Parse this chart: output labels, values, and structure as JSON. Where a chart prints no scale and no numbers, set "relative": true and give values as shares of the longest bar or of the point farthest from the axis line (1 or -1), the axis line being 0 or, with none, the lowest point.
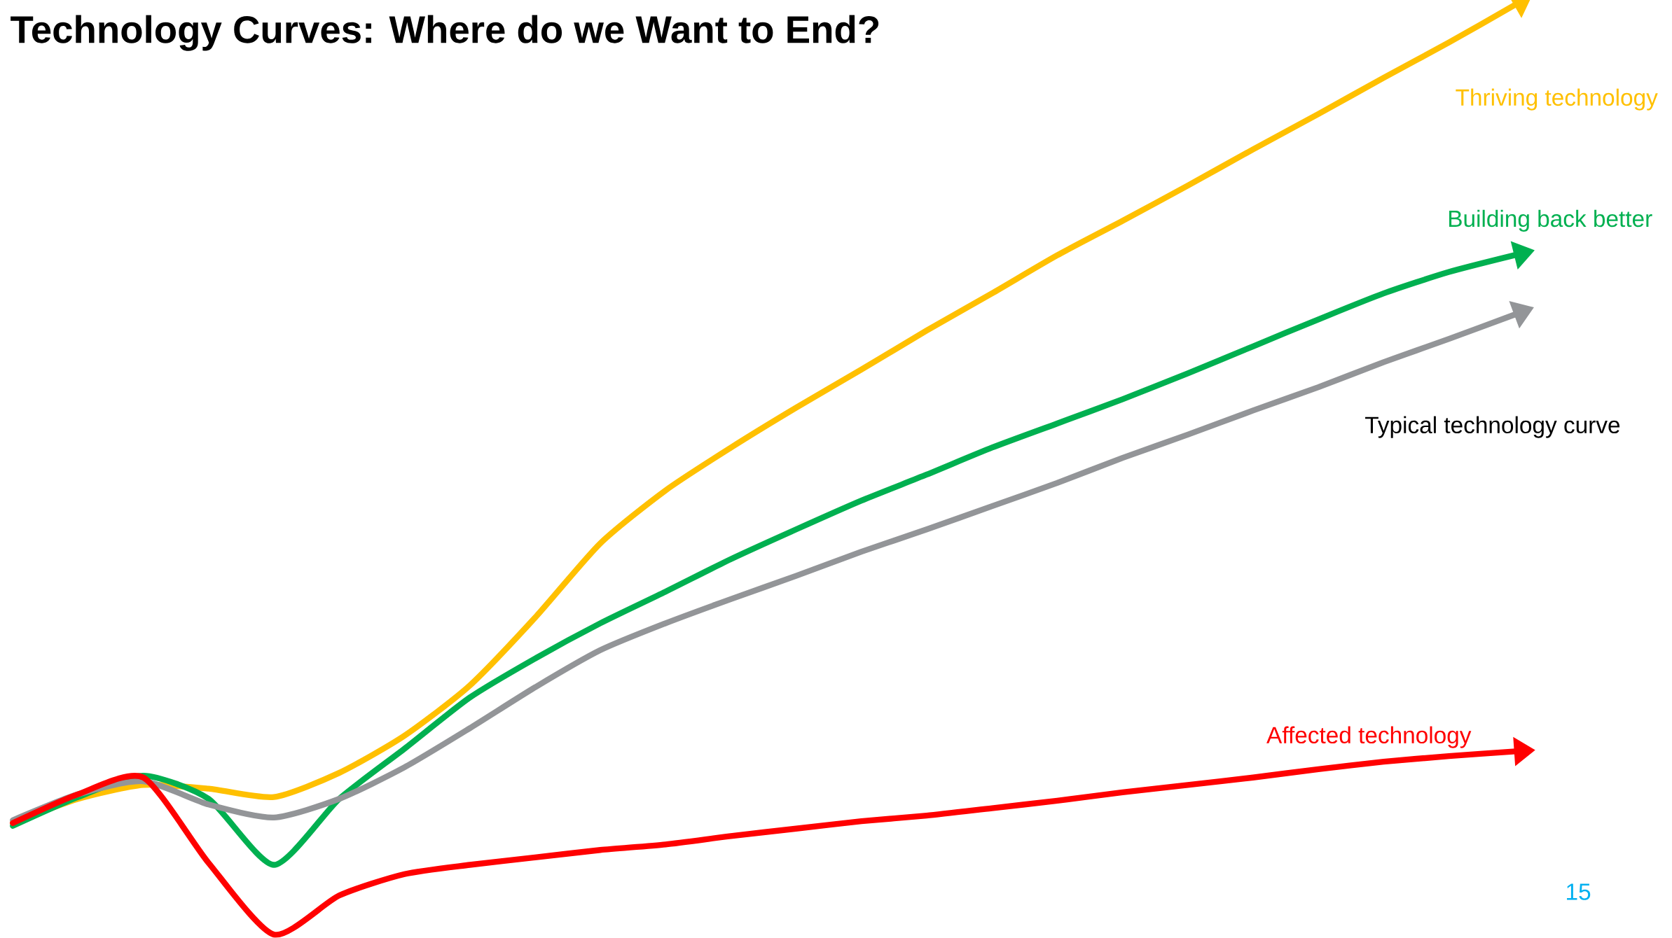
{
  "chart_data": {
    "type": "line",
    "title": "Technology Curves: Where do we Want to End?",
    "relative": true,
    "categories": [
      null,
      null,
      null,
      null,
      null,
      null,
      null,
      null,
      null,
      null,
      null,
      null,
      null,
      null,
      null,
      null,
      null,
      null,
      null,
      null,
      null,
      null,
      null,
      null
    ],
    "series": [
      {
        "name": "Thriving technology",
        "color": "#ffc000",
        "values": [
          0.12,
          0.146,
          0.161,
          0.157,
          0.148,
          0.174,
          0.214,
          0.268,
          0.341,
          0.421,
          0.478,
          0.524,
          0.567,
          0.608,
          0.65,
          0.69,
          0.731,
          0.768,
          0.806,
          0.845,
          0.883,
          0.922,
          0.96,
          1
        ]
      },
      {
        "name": "Building back better",
        "color": "#00b050",
        "values": [
          0.117,
          0.148,
          0.171,
          0.146,
          0.075,
          0.146,
          0.2,
          0.255,
          0.297,
          0.335,
          0.369,
          0.404,
          0.436,
          0.467,
          0.495,
          0.524,
          0.55,
          0.576,
          0.604,
          0.633,
          0.662,
          0.69,
          0.713,
          0.731
        ]
      },
      {
        "name": "Typical technology curve",
        "color": "#939598",
        "values": [
          0.123,
          0.151,
          0.165,
          0.14,
          0.126,
          0.146,
          0.18,
          0.222,
          0.266,
          0.306,
          0.335,
          0.361,
          0.386,
          0.412,
          0.436,
          0.461,
          0.486,
          0.513,
          0.538,
          0.564,
          0.589,
          0.616,
          0.641,
          0.667
        ]
      },
      {
        "name": "Affected technology",
        "color": "#ff0000",
        "values": [
          0.12,
          0.151,
          0.169,
          0.077,
          0,
          0.042,
          0.065,
          0.075,
          0.083,
          0.091,
          0.097,
          0.106,
          0.114,
          0.122,
          0.128,
          0.136,
          0.144,
          0.153,
          0.161,
          0.169,
          0.178,
          0.186,
          0.192,
          0.197
        ]
      }
    ],
    "annotations": [
      "15"
    ]
  }
}
